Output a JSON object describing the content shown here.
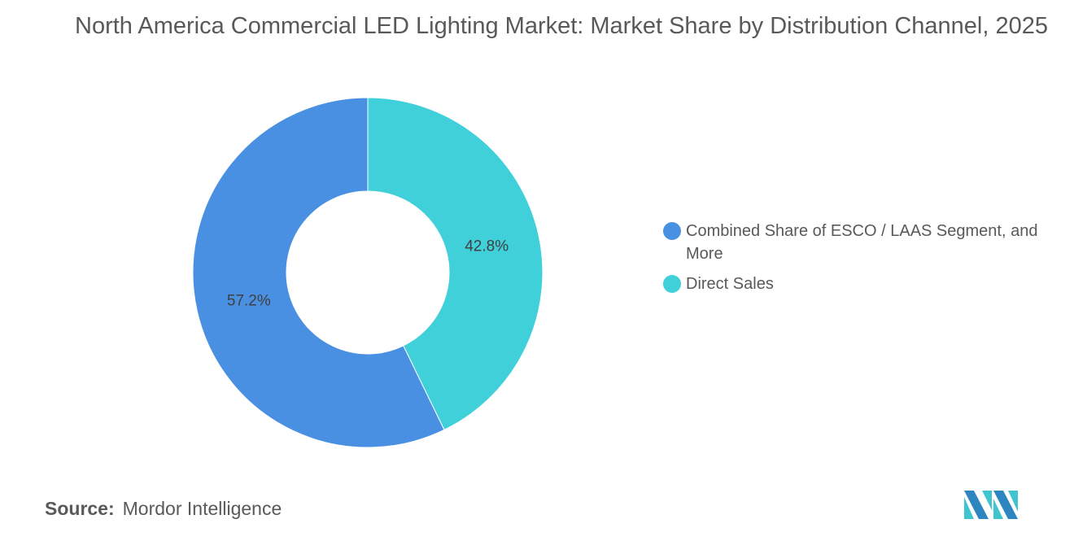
{
  "chart_data": {
    "type": "pie",
    "variant": "donut",
    "title": "North America Commercial LED Lighting Market: Market Share by Distribution Channel, 2025",
    "slices": [
      {
        "label": "Direct Sales",
        "value": 42.8,
        "display": "42.8%",
        "color": "#40D0DA"
      },
      {
        "label": "Combined Share of ESCO / LAAS Segment, and More",
        "value": 57.2,
        "display": "57.2%",
        "color": "#4A90E2"
      }
    ],
    "legend": [
      {
        "label": "Combined Share of ESCO / LAAS Segment, and More",
        "color": "#4A90E2"
      },
      {
        "label": "Direct Sales",
        "color": "#40D0DA"
      }
    ],
    "legend_placement": "right"
  },
  "source": {
    "label": "Source:",
    "value": "Mordor Intelligence"
  },
  "logo": {
    "name": "mordor-intelligence-logo",
    "colors": [
      "#2E86C1",
      "#40C4D0"
    ]
  }
}
